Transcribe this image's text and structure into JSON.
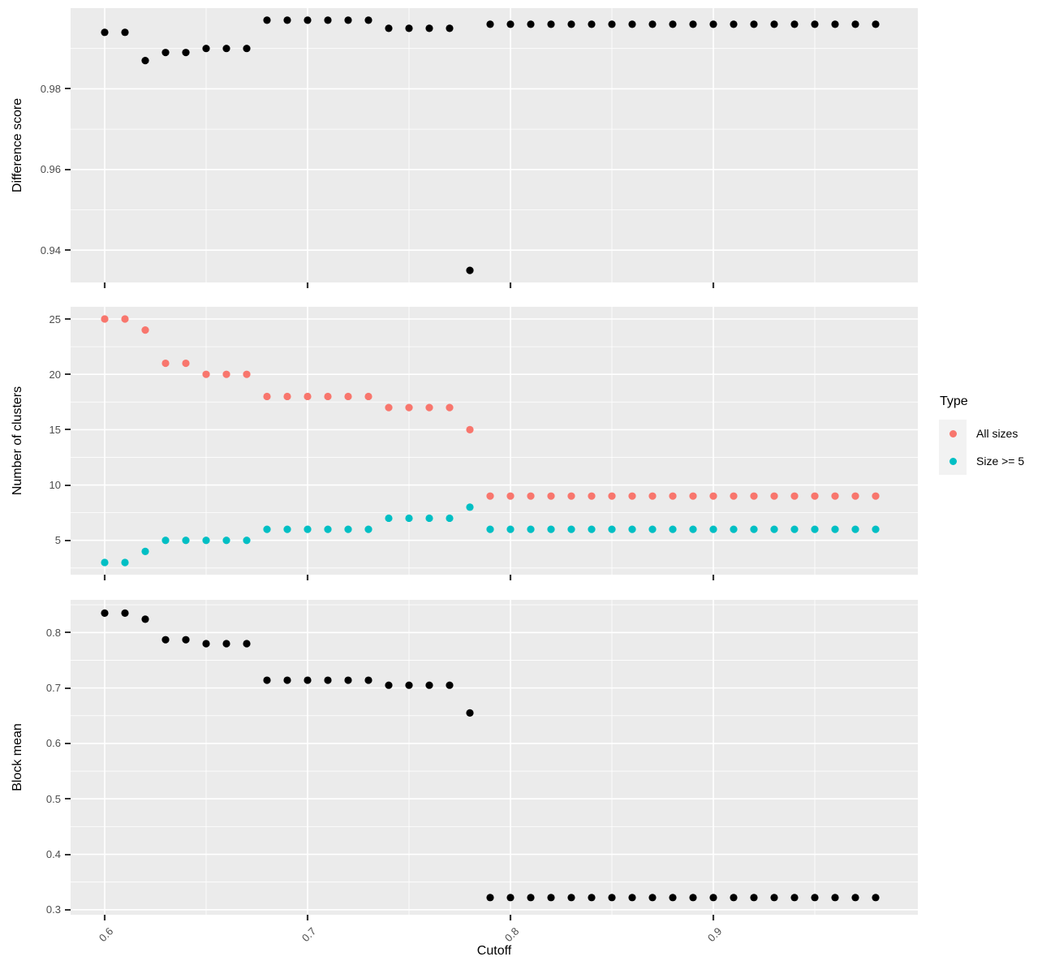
{
  "colors": {
    "panel_bg": "#EBEBEB",
    "grid": "#FFFFFF",
    "tick": "#333333",
    "axis_text": "#4D4D4D",
    "black_series": "#000000",
    "all_sizes": "#F8766D",
    "size_ge5": "#00BFC4",
    "legend_key_bg": "#F2F2F2"
  },
  "x_axis": {
    "title": "Cutoff",
    "tick_values": [
      0.6,
      0.7,
      0.8,
      0.9
    ],
    "tick_labels": [
      "0.6",
      "0.7",
      "0.8",
      "0.9"
    ],
    "minor_values": [
      0.65,
      0.75,
      0.85,
      0.95
    ],
    "lim": [
      0.5832,
      1.0008
    ]
  },
  "legend": {
    "title": "Type",
    "items": [
      {
        "label": "All sizes",
        "color": "#F8766D"
      },
      {
        "label": "Size >= 5",
        "color": "#00BFC4"
      }
    ]
  },
  "chart_data": [
    {
      "type": "scatter",
      "title": "",
      "xlabel": "Cutoff",
      "ylabel": "Difference score",
      "ylim": [
        0.932,
        1.0
      ],
      "yticks": [
        0.94,
        0.96,
        0.98
      ],
      "ytick_labels": [
        "0.94",
        "0.96",
        "0.98"
      ],
      "yminor": [
        0.95,
        0.97,
        0.99
      ],
      "grid": true,
      "x": [
        0.6,
        0.61,
        0.62,
        0.63,
        0.64,
        0.65,
        0.66,
        0.67,
        0.68,
        0.69,
        0.7,
        0.71,
        0.72,
        0.73,
        0.74,
        0.75,
        0.76,
        0.77,
        0.78,
        0.79,
        0.8,
        0.81,
        0.82,
        0.83,
        0.84,
        0.85,
        0.86,
        0.87,
        0.88,
        0.89,
        0.9,
        0.91,
        0.92,
        0.93,
        0.94,
        0.95,
        0.96,
        0.97,
        0.98
      ],
      "series": [
        {
          "name": "Difference score",
          "color": "#000000",
          "values": [
            0.994,
            0.994,
            0.987,
            0.989,
            0.989,
            0.99,
            0.99,
            0.99,
            0.997,
            0.997,
            0.997,
            0.997,
            0.997,
            0.997,
            0.995,
            0.995,
            0.995,
            0.995,
            0.935,
            0.996,
            0.996,
            0.996,
            0.996,
            0.996,
            0.996,
            0.996,
            0.996,
            0.996,
            0.996,
            0.996,
            0.996,
            0.996,
            0.996,
            0.996,
            0.996,
            0.996,
            0.996,
            0.996,
            0.996
          ]
        }
      ]
    },
    {
      "type": "scatter",
      "title": "",
      "xlabel": "Cutoff",
      "ylabel": "Number of clusters",
      "ylim": [
        1.9,
        26.1
      ],
      "yticks": [
        5,
        10,
        15,
        20,
        25
      ],
      "ytick_labels": [
        "5",
        "10",
        "15",
        "20",
        "25"
      ],
      "yminor": [
        2.5,
        7.5,
        12.5,
        17.5,
        22.5
      ],
      "grid": true,
      "legend_title": "Type",
      "x": [
        0.6,
        0.61,
        0.62,
        0.63,
        0.64,
        0.65,
        0.66,
        0.67,
        0.68,
        0.69,
        0.7,
        0.71,
        0.72,
        0.73,
        0.74,
        0.75,
        0.76,
        0.77,
        0.78,
        0.79,
        0.8,
        0.81,
        0.82,
        0.83,
        0.84,
        0.85,
        0.86,
        0.87,
        0.88,
        0.89,
        0.9,
        0.91,
        0.92,
        0.93,
        0.94,
        0.95,
        0.96,
        0.97,
        0.98
      ],
      "series": [
        {
          "name": "All sizes",
          "color": "#F8766D",
          "values": [
            25,
            25,
            24,
            21,
            21,
            20,
            20,
            20,
            18,
            18,
            18,
            18,
            18,
            18,
            17,
            17,
            17,
            17,
            15,
            9,
            9,
            9,
            9,
            9,
            9,
            9,
            9,
            9,
            9,
            9,
            9,
            9,
            9,
            9,
            9,
            9,
            9,
            9,
            9
          ]
        },
        {
          "name": "Size >= 5",
          "color": "#00BFC4",
          "values": [
            3,
            3,
            4,
            5,
            5,
            5,
            5,
            5,
            6,
            6,
            6,
            6,
            6,
            6,
            7,
            7,
            7,
            7,
            8,
            6,
            6,
            6,
            6,
            6,
            6,
            6,
            6,
            6,
            6,
            6,
            6,
            6,
            6,
            6,
            6,
            6,
            6,
            6,
            6
          ]
        }
      ]
    },
    {
      "type": "scatter",
      "title": "",
      "xlabel": "Cutoff",
      "ylabel": "Block mean",
      "ylim": [
        0.291,
        0.859
      ],
      "yticks": [
        0.3,
        0.4,
        0.5,
        0.6,
        0.7,
        0.8
      ],
      "ytick_labels": [
        "0.3",
        "0.4",
        "0.5",
        "0.6",
        "0.7",
        "0.8"
      ],
      "yminor": [
        0.35,
        0.45,
        0.55,
        0.65,
        0.75,
        0.85
      ],
      "grid": true,
      "x": [
        0.6,
        0.61,
        0.62,
        0.63,
        0.64,
        0.65,
        0.66,
        0.67,
        0.68,
        0.69,
        0.7,
        0.71,
        0.72,
        0.73,
        0.74,
        0.75,
        0.76,
        0.77,
        0.78,
        0.79,
        0.8,
        0.81,
        0.82,
        0.83,
        0.84,
        0.85,
        0.86,
        0.87,
        0.88,
        0.89,
        0.9,
        0.91,
        0.92,
        0.93,
        0.94,
        0.95,
        0.96,
        0.97,
        0.98
      ],
      "series": [
        {
          "name": "Block mean",
          "color": "#000000",
          "values": [
            0.835,
            0.835,
            0.824,
            0.787,
            0.787,
            0.78,
            0.78,
            0.78,
            0.714,
            0.714,
            0.714,
            0.714,
            0.714,
            0.714,
            0.705,
            0.705,
            0.705,
            0.705,
            0.655,
            0.322,
            0.322,
            0.322,
            0.322,
            0.322,
            0.322,
            0.322,
            0.322,
            0.322,
            0.322,
            0.322,
            0.322,
            0.322,
            0.322,
            0.322,
            0.322,
            0.322,
            0.322,
            0.322,
            0.322
          ]
        }
      ]
    }
  ]
}
